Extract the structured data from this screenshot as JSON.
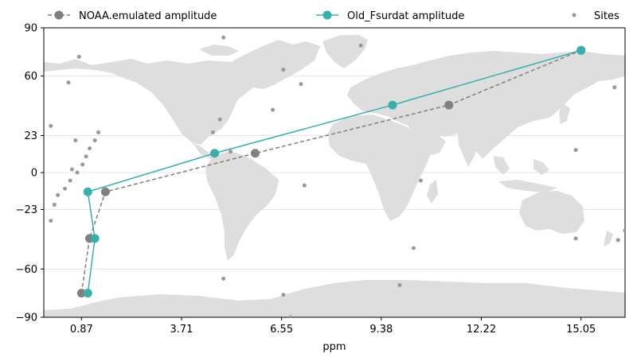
{
  "chart_data": {
    "type": "line",
    "xlabel": "ppm",
    "ylabel": "",
    "xlim": [
      -0.2,
      16.3
    ],
    "ylim": [
      -90,
      90
    ],
    "x_ticks": [
      0.87,
      3.71,
      6.55,
      9.38,
      12.22,
      15.05
    ],
    "x_tick_labels": [
      "0.87",
      "3.71",
      "6.55",
      "9.38",
      "12.22",
      "15.05"
    ],
    "y_ticks": [
      -90,
      -60,
      -23,
      0,
      23,
      60,
      90
    ],
    "y_tick_labels": [
      "−90",
      "−60",
      "−23",
      "0",
      "23",
      "60",
      "90"
    ],
    "grid": "horizontal",
    "legend_position": "top",
    "background": "world map (land shaded light gray)",
    "series": [
      {
        "name": "NOAA.emulated amplitude",
        "color": "#808080",
        "linestyle": "dashed",
        "marker": "circle",
        "points": [
          {
            "x": 0.87,
            "y": -75
          },
          {
            "x": 1.1,
            "y": -41
          },
          {
            "x": 1.55,
            "y": -12
          },
          {
            "x": 5.8,
            "y": 12
          },
          {
            "x": 11.3,
            "y": 42
          },
          {
            "x": 15.05,
            "y": 76
          }
        ]
      },
      {
        "name": "Old_Fsurdat amplitude",
        "color": "#3aaeaa",
        "linestyle": "solid",
        "marker": "circle",
        "points": [
          {
            "x": 1.05,
            "y": -75
          },
          {
            "x": 1.25,
            "y": -41
          },
          {
            "x": 1.05,
            "y": -12
          },
          {
            "x": 4.65,
            "y": 12
          },
          {
            "x": 9.7,
            "y": 42
          },
          {
            "x": 15.05,
            "y": 76
          }
        ]
      }
    ],
    "sites": {
      "name": "Sites",
      "color": "#999999",
      "points": [
        {
          "x": 0.0,
          "y": -30
        },
        {
          "x": 0.1,
          "y": -20
        },
        {
          "x": 0.2,
          "y": -14
        },
        {
          "x": 0.4,
          "y": -10
        },
        {
          "x": 0.55,
          "y": -5
        },
        {
          "x": 0.6,
          "y": 2
        },
        {
          "x": 0.75,
          "y": 0
        },
        {
          "x": 0.9,
          "y": 5
        },
        {
          "x": 1.0,
          "y": 10
        },
        {
          "x": 1.1,
          "y": 15
        },
        {
          "x": 1.25,
          "y": 20
        },
        {
          "x": 1.35,
          "y": 25
        },
        {
          "x": 0.7,
          "y": 20
        },
        {
          "x": 0.0,
          "y": 29
        },
        {
          "x": 0.5,
          "y": 56
        },
        {
          "x": 0.8,
          "y": 72
        },
        {
          "x": 4.6,
          "y": 25
        },
        {
          "x": 4.8,
          "y": 33
        },
        {
          "x": 4.9,
          "y": 84
        },
        {
          "x": 5.1,
          "y": 13
        },
        {
          "x": 6.3,
          "y": 39
        },
        {
          "x": 6.6,
          "y": 64
        },
        {
          "x": 7.1,
          "y": 55
        },
        {
          "x": 7.2,
          "y": -8
        },
        {
          "x": 8.8,
          "y": 79
        },
        {
          "x": 10.5,
          "y": -5
        },
        {
          "x": 10.3,
          "y": -47
        },
        {
          "x": 9.9,
          "y": -70
        },
        {
          "x": 4.9,
          "y": -66
        },
        {
          "x": 6.6,
          "y": -76
        },
        {
          "x": 6.8,
          "y": -90
        },
        {
          "x": 14.9,
          "y": 14
        },
        {
          "x": 14.9,
          "y": -41
        },
        {
          "x": 16.0,
          "y": 53
        },
        {
          "x": 16.1,
          "y": -42
        },
        {
          "x": 16.3,
          "y": -36
        }
      ]
    }
  }
}
